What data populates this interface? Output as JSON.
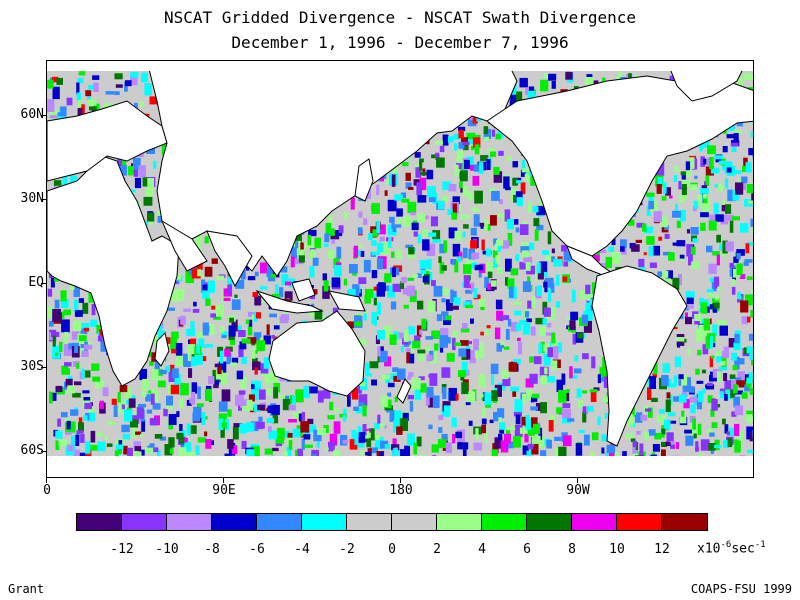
{
  "title_line1": "NSCAT Gridded Divergence - NSCAT Swath Divergence",
  "title_line2": "December 1, 1996 - December 7, 1996",
  "lat_labels": [
    "60N",
    "30N",
    "EQ",
    "30S",
    "60S"
  ],
  "lon_labels": [
    "0",
    "90E",
    "180",
    "90W"
  ],
  "colorbar": {
    "colors": [
      "#440077",
      "#8833ff",
      "#bb88ff",
      "#0000cc",
      "#3388ff",
      "#00ffff",
      "#cccccc",
      "#cccccc",
      "#99ff88",
      "#00ee00",
      "#007700",
      "#ee00ee",
      "#ff0000",
      "#990000"
    ],
    "labels": [
      "-12",
      "-10",
      "-8",
      "-6",
      "-4",
      "-2",
      "0",
      "2",
      "4",
      "6",
      "8",
      "10",
      "12"
    ],
    "units_prefix": "x10",
    "units_exp": "-6",
    "units_suffix": "sec",
    "units_exp2": "-1"
  },
  "footer_left": "Grant",
  "footer_right": "COAPS-FSU 1999"
}
